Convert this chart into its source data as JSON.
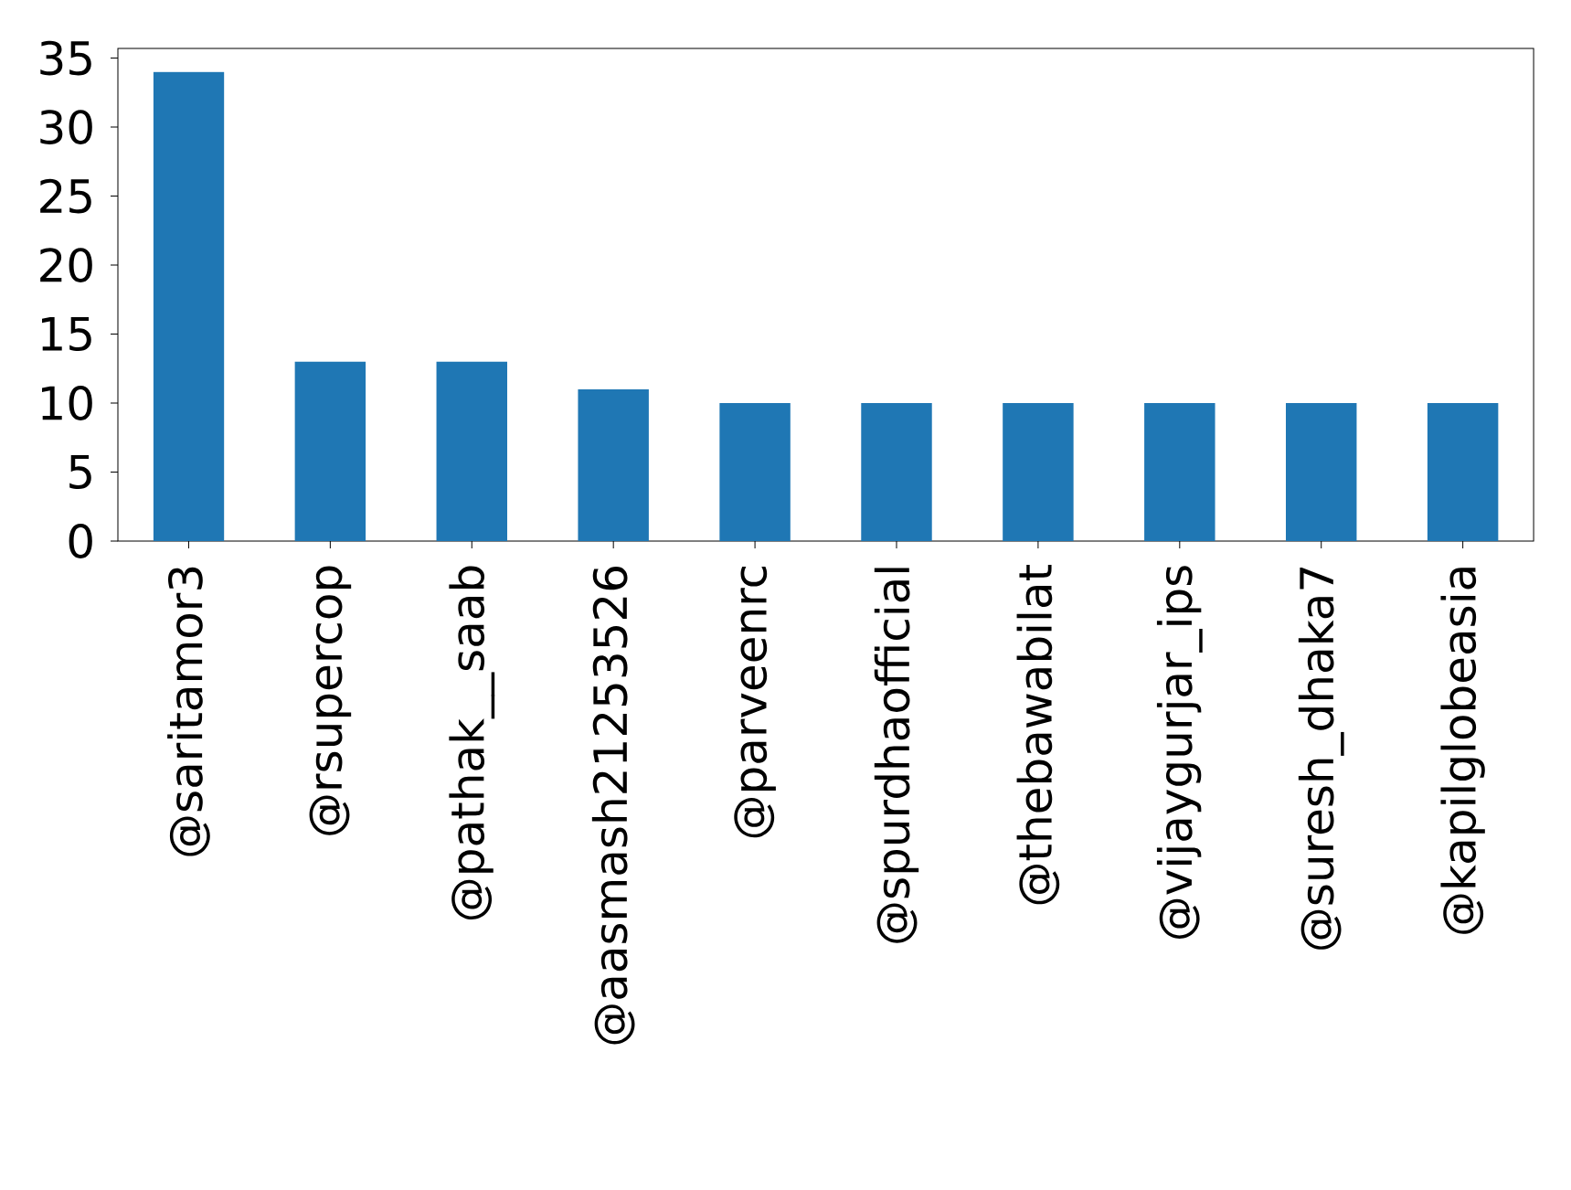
{
  "chart_data": {
    "type": "bar",
    "categories": [
      "@saritamor3",
      "@rsupercop",
      "@pathak__saab",
      "@aasmash21253526",
      "@parveenrc",
      "@spurdhaofficial",
      "@thebawabilat",
      "@vijaygurjar_ips",
      "@suresh_dhaka7",
      "@kapilglobeasia"
    ],
    "values": [
      34,
      13,
      13,
      11,
      10,
      10,
      10,
      10,
      10,
      10
    ],
    "color": "#1f77b4",
    "ylim": [
      0,
      35.7
    ],
    "yticks": [
      0,
      5,
      10,
      15,
      20,
      25,
      30,
      35
    ],
    "grid": false
  }
}
